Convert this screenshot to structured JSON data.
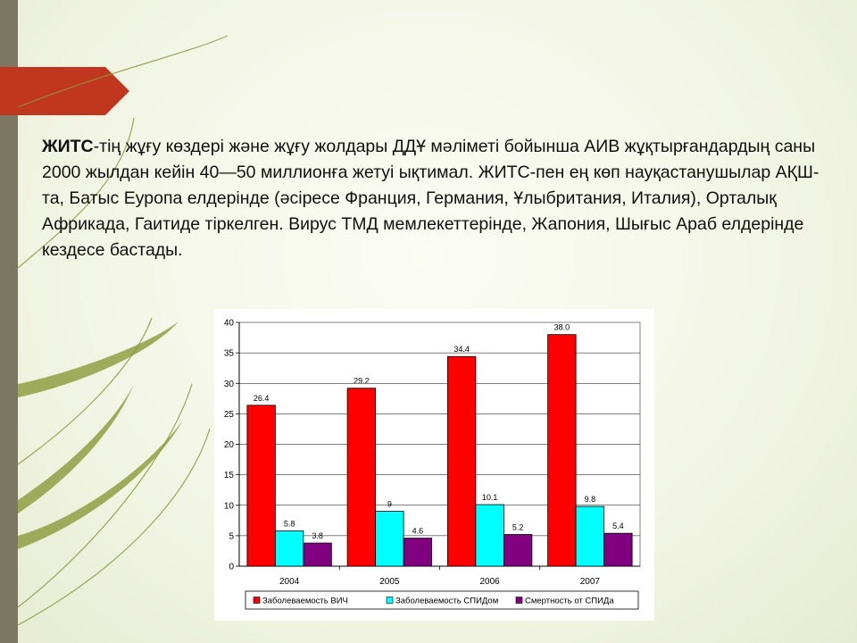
{
  "slide": {
    "text_bold": "ЖИТС",
    "text_rest": "-тің жұғу көздері және жұғу жолдары ДДҰ мәліметі бойынша АИВ жұқтырғандардың саны 2000 жылдан кейін 40—50 миллионға жетуі ықтимал. ЖИТС-пен ең көп науқастанушылар АҚШ-та, Батыс Еуропа елдерінде (әсіресе Франция, Германия, Ұлыбритания, Италия), Орталық Африкада, Гаитиде тіркелген. Вирус ТМД мемлекеттерінде, Жапония, Шығыс Араб елдерінде кездесе бастады.",
    "stripe_color": "#7c7760",
    "tab_color": "#c0361f",
    "decor_color": "#8a9a3a"
  },
  "chart_data": {
    "type": "bar",
    "categories": [
      "2004",
      "2005",
      "2006",
      "2007"
    ],
    "series": [
      {
        "name": "Заболеваемость ВИЧ",
        "values": [
          26.4,
          29.2,
          34.4,
          38.0
        ],
        "labels": [
          "26.4",
          "29.2",
          "34.4",
          "38.0"
        ],
        "color": "#ff0000"
      },
      {
        "name": "Заболеваемость СПИДом",
        "values": [
          5.8,
          9,
          10.1,
          9.8
        ],
        "labels": [
          "5.8",
          "9",
          "10.1",
          "9.8"
        ],
        "color": "#00ffff"
      },
      {
        "name": "Смертность от СПИДа",
        "values": [
          3.8,
          4.6,
          5.2,
          5.4
        ],
        "labels": [
          "3.8",
          "4.6",
          "5.2",
          "5.4"
        ],
        "color": "#800080"
      }
    ],
    "yticks": [
      "0",
      "5",
      "10",
      "15",
      "20",
      "25",
      "30",
      "35",
      "40"
    ],
    "ylim": [
      0,
      40
    ],
    "grid": true,
    "legend": "bottom"
  }
}
